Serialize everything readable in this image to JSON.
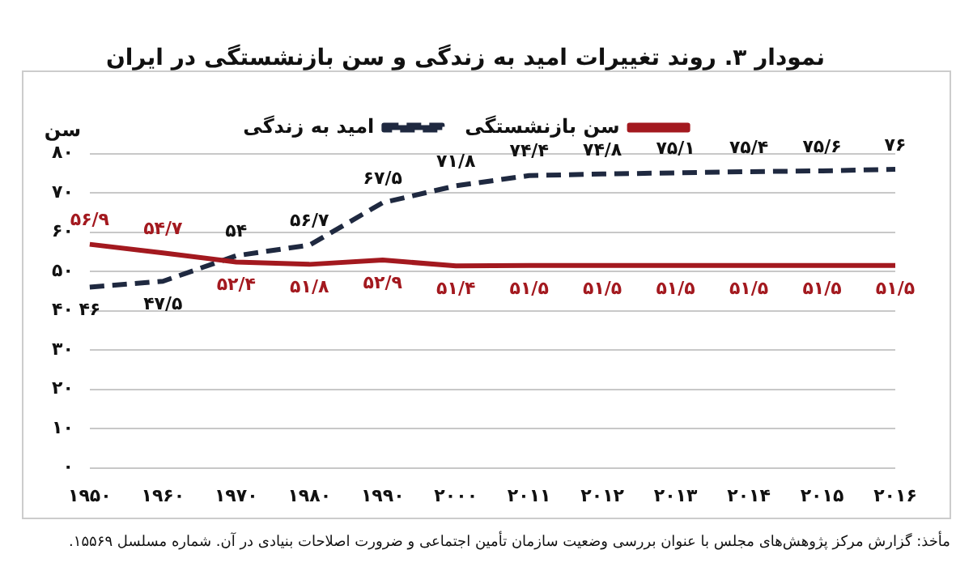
{
  "chart_data": {
    "type": "line",
    "title": "نمودار ۳. روند تغییرات امید به زندگی و سن بازنشستگی در ایران",
    "ylabel": "سن",
    "categories": [
      "۱۹۵۰",
      "۱۹۶۰",
      "۱۹۷۰",
      "۱۹۸۰",
      "۱۹۹۰",
      "۲۰۰۰",
      "۲۰۱۱",
      "۲۰۱۲",
      "۲۰۱۳",
      "۲۰۱۴",
      "۲۰۱۵",
      "۲۰۱۶"
    ],
    "series": [
      {
        "name": "سن بازنشستگی",
        "color": "#a3191f",
        "line_style": "solid",
        "values": [
          56.9,
          54.7,
          52.4,
          51.8,
          52.9,
          51.4,
          51.5,
          51.5,
          51.5,
          51.5,
          51.5,
          51.5
        ],
        "value_labels": [
          "۵۶/۹",
          "۵۴/۷",
          "۵۲/۴",
          "۵۱/۸",
          "۵۲/۹",
          "۵۱/۴",
          "۵۱/۵",
          "۵۱/۵",
          "۵۱/۵",
          "۵۱/۵",
          "۵۱/۵",
          "۵۱/۵"
        ]
      },
      {
        "name": "امید به زندگی",
        "color": "#1f2940",
        "line_style": "dashed",
        "values": [
          46,
          47.5,
          54,
          56.7,
          67.5,
          71.8,
          74.4,
          74.8,
          75.1,
          75.4,
          75.6,
          76
        ],
        "value_labels": [
          "۴۶",
          "۴۷/۵",
          "۵۴",
          "۵۶/۷",
          "۶۷/۵",
          "۷۱/۸",
          "۷۴/۴",
          "۷۴/۸",
          "۷۵/۱",
          "۷۵/۴",
          "۷۵/۶",
          "۷۶"
        ]
      }
    ],
    "ylim": [
      0,
      80
    ],
    "yticks": [
      {
        "value": 0,
        "label": "۰"
      },
      {
        "value": 10,
        "label": "۱۰"
      },
      {
        "value": 20,
        "label": "۲۰"
      },
      {
        "value": 30,
        "label": "۳۰"
      },
      {
        "value": 40,
        "label": "۴۰"
      },
      {
        "value": 50,
        "label": "۵۰"
      },
      {
        "value": 60,
        "label": "۶۰"
      },
      {
        "value": 70,
        "label": "۷۰"
      },
      {
        "value": 80,
        "label": "۸۰"
      }
    ],
    "grid": "y",
    "legend": "top",
    "marker": "none",
    "annotations": [
      "مأخذ: گزارش مرکز پژوهش‌های مجلس با عنوان بررسی وضعیت سازمان تأمین اجتماعی و ضرورت اصلاحات بنیادی در آن. شماره مسلسل ۱۵۵۶۹."
    ]
  }
}
